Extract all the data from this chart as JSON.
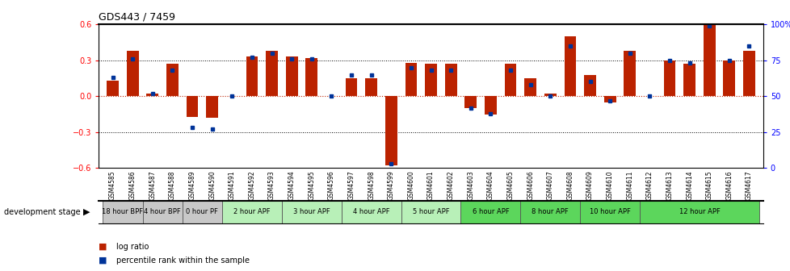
{
  "title": "GDS443 / 7459",
  "samples": [
    "GSM4585",
    "GSM4586",
    "GSM4587",
    "GSM4588",
    "GSM4589",
    "GSM4590",
    "GSM4591",
    "GSM4592",
    "GSM4593",
    "GSM4594",
    "GSM4595",
    "GSM4596",
    "GSM4597",
    "GSM4598",
    "GSM4599",
    "GSM4600",
    "GSM4601",
    "GSM4602",
    "GSM4603",
    "GSM4604",
    "GSM4605",
    "GSM4606",
    "GSM4607",
    "GSM4608",
    "GSM4609",
    "GSM4610",
    "GSM4611",
    "GSM4612",
    "GSM4613",
    "GSM4614",
    "GSM4615",
    "GSM4616",
    "GSM4617"
  ],
  "log_ratios": [
    0.13,
    0.38,
    0.02,
    0.27,
    -0.17,
    -0.18,
    0.0,
    0.33,
    0.38,
    0.33,
    0.32,
    0.0,
    0.15,
    0.15,
    -0.58,
    0.28,
    0.27,
    0.27,
    -0.1,
    -0.15,
    0.27,
    0.15,
    0.02,
    0.5,
    0.18,
    -0.05,
    0.38,
    0.0,
    0.3,
    0.27,
    0.72,
    0.3,
    0.38
  ],
  "percentile_ranks": [
    63,
    76,
    52,
    68,
    28,
    27,
    50,
    77,
    80,
    76,
    76,
    50,
    65,
    65,
    3,
    70,
    68,
    68,
    42,
    38,
    68,
    58,
    50,
    85,
    60,
    47,
    80,
    50,
    75,
    73,
    99,
    75,
    85
  ],
  "stages": [
    {
      "label": "18 hour BPF",
      "start": 0,
      "end": 2,
      "color": "#c8c8c8"
    },
    {
      "label": "4 hour BPF",
      "start": 2,
      "end": 4,
      "color": "#c8c8c8"
    },
    {
      "label": "0 hour PF",
      "start": 4,
      "end": 6,
      "color": "#c8c8c8"
    },
    {
      "label": "2 hour APF",
      "start": 6,
      "end": 9,
      "color": "#b8f0b8"
    },
    {
      "label": "3 hour APF",
      "start": 9,
      "end": 12,
      "color": "#b8f0b8"
    },
    {
      "label": "4 hour APF",
      "start": 12,
      "end": 15,
      "color": "#b8f0b8"
    },
    {
      "label": "5 hour APF",
      "start": 15,
      "end": 18,
      "color": "#b8f0b8"
    },
    {
      "label": "6 hour APF",
      "start": 18,
      "end": 21,
      "color": "#5cd65c"
    },
    {
      "label": "8 hour APF",
      "start": 21,
      "end": 24,
      "color": "#5cd65c"
    },
    {
      "label": "10 hour APF",
      "start": 24,
      "end": 27,
      "color": "#5cd65c"
    },
    {
      "label": "12 hour APF",
      "start": 27,
      "end": 33,
      "color": "#5cd65c"
    }
  ],
  "bar_color": "#bb2200",
  "dot_color": "#003399",
  "ylim_left": [
    -0.6,
    0.6
  ],
  "ylim_right": [
    0,
    100
  ],
  "yticks_left": [
    -0.6,
    -0.3,
    0.0,
    0.3,
    0.6
  ],
  "yticks_right": [
    0,
    25,
    50,
    75,
    100
  ],
  "bar_width": 0.6
}
